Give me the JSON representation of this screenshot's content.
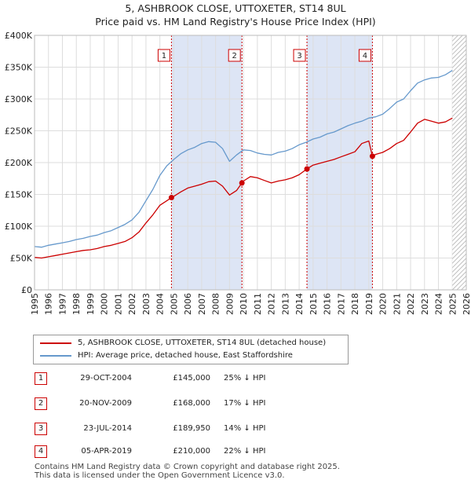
{
  "title": "5, ASHBROOK CLOSE, UTTOXETER, ST14 8UL",
  "subtitle": "Price paid vs. HM Land Registry's House Price Index (HPI)",
  "colors": {
    "property": "#cc0000",
    "hpi": "#6699cc",
    "shade": "#dde5f5",
    "marker_box": "#cc0000"
  },
  "legend": {
    "property": "5, ASHBROOK CLOSE, UTTOXETER, ST14 8UL (detached house)",
    "hpi": "HPI: Average price, detached house, East Staffordshire"
  },
  "transactions": [
    {
      "num": "1",
      "date": "29-OCT-2004",
      "price": "£145,000",
      "hpi": "25% ↓ HPI"
    },
    {
      "num": "2",
      "date": "20-NOV-2009",
      "price": "£168,000",
      "hpi": "17% ↓ HPI"
    },
    {
      "num": "3",
      "date": "23-JUL-2014",
      "price": "£189,950",
      "hpi": "14% ↓ HPI"
    },
    {
      "num": "4",
      "date": "05-APR-2019",
      "price": "£210,000",
      "hpi": "22% ↓ HPI"
    }
  ],
  "footer": {
    "line1": "Contains HM Land Registry data © Crown copyright and database right 2025.",
    "line2": "This data is licensed under the Open Government Licence v3.0."
  },
  "chart_data": {
    "type": "line",
    "title": "5, ASHBROOK CLOSE, UTTOXETER, ST14 8UL",
    "subtitle": "Price paid vs. HM Land Registry's House Price Index (HPI)",
    "xlabel": "",
    "ylabel": "",
    "xlim": [
      1995,
      2026
    ],
    "ylim": [
      0,
      400000
    ],
    "grid": true,
    "legend_position": "below",
    "y_ticks": [
      0,
      50000,
      100000,
      150000,
      200000,
      250000,
      300000,
      350000,
      400000
    ],
    "y_tick_labels": [
      "£0",
      "£50K",
      "£100K",
      "£150K",
      "£200K",
      "£250K",
      "£300K",
      "£350K",
      "£400K"
    ],
    "x_ticks": [
      1995,
      1996,
      1997,
      1998,
      1999,
      2000,
      2001,
      2002,
      2003,
      2004,
      2005,
      2006,
      2007,
      2008,
      2009,
      2010,
      2011,
      2012,
      2013,
      2014,
      2015,
      2016,
      2017,
      2018,
      2019,
      2020,
      2021,
      2022,
      2023,
      2024,
      2025,
      2026
    ],
    "x_tick_labels": [
      "1995",
      "1996",
      "1997",
      "1998",
      "1999",
      "2000",
      "2001",
      "2002",
      "2003",
      "2004",
      "2005",
      "2006",
      "2007",
      "2008",
      "2009",
      "2010",
      "2011",
      "2012",
      "2013",
      "2014",
      "2015",
      "2016",
      "2017",
      "2018",
      "2019",
      "2020",
      "2021",
      "2022",
      "2023",
      "2024",
      "2025",
      "2026"
    ],
    "shaded_ranges": [
      [
        2004.83,
        2009.89
      ],
      [
        2014.56,
        2019.26
      ]
    ],
    "future_from": 2025.0,
    "series": [
      {
        "name": "HPI: Average price, detached house, East Staffordshire",
        "color": "#6699cc",
        "x": [
          1995.0,
          1995.5,
          1996.0,
          1996.5,
          1997.0,
          1997.5,
          1998.0,
          1998.5,
          1999.0,
          1999.5,
          2000.0,
          2000.5,
          2001.0,
          2001.5,
          2002.0,
          2002.5,
          2003.0,
          2003.5,
          2004.0,
          2004.5,
          2005.0,
          2005.5,
          2006.0,
          2006.5,
          2007.0,
          2007.5,
          2008.0,
          2008.5,
          2009.0,
          2009.5,
          2010.0,
          2010.5,
          2011.0,
          2011.5,
          2012.0,
          2012.5,
          2013.0,
          2013.5,
          2014.0,
          2014.5,
          2015.0,
          2015.5,
          2016.0,
          2016.5,
          2017.0,
          2017.5,
          2018.0,
          2018.5,
          2019.0,
          2019.5,
          2020.0,
          2020.5,
          2021.0,
          2021.5,
          2022.0,
          2022.5,
          2023.0,
          2023.5,
          2024.0,
          2024.5,
          2025.0
        ],
        "values": [
          68000,
          67000,
          70000,
          72000,
          74000,
          76000,
          79000,
          81000,
          84000,
          86000,
          90000,
          93000,
          98000,
          103000,
          110000,
          122000,
          140000,
          158000,
          180000,
          195000,
          205000,
          214000,
          220000,
          224000,
          230000,
          233000,
          232000,
          222000,
          202000,
          212000,
          220000,
          219000,
          215000,
          213000,
          212000,
          216000,
          218000,
          222000,
          228000,
          232000,
          237000,
          240000,
          245000,
          248000,
          253000,
          258000,
          262000,
          265000,
          270000,
          272000,
          276000,
          285000,
          295000,
          300000,
          313000,
          325000,
          330000,
          333000,
          334000,
          338000,
          345000
        ]
      },
      {
        "name": "5, ASHBROOK CLOSE, UTTOXETER, ST14 8UL (detached house)",
        "color": "#cc0000",
        "x": [
          1995.0,
          1995.5,
          1996.0,
          1996.5,
          1997.0,
          1997.5,
          1998.0,
          1998.5,
          1999.0,
          1999.5,
          2000.0,
          2000.5,
          2001.0,
          2001.5,
          2002.0,
          2002.5,
          2003.0,
          2003.5,
          2004.0,
          2004.5,
          2004.83,
          2005.0,
          2005.5,
          2006.0,
          2006.5,
          2007.0,
          2007.5,
          2008.0,
          2008.5,
          2009.0,
          2009.5,
          2009.89,
          2010.0,
          2010.5,
          2011.0,
          2011.5,
          2012.0,
          2012.5,
          2013.0,
          2013.5,
          2014.0,
          2014.56,
          2015.0,
          2015.5,
          2016.0,
          2016.5,
          2017.0,
          2017.5,
          2018.0,
          2018.5,
          2019.0,
          2019.26,
          2019.5,
          2020.0,
          2020.5,
          2021.0,
          2021.5,
          2022.0,
          2022.5,
          2023.0,
          2023.5,
          2024.0,
          2024.5,
          2025.0
        ],
        "values": [
          51000,
          50000,
          52000,
          54000,
          56000,
          58000,
          60000,
          62000,
          63000,
          65000,
          68000,
          70000,
          73000,
          76000,
          82000,
          91000,
          105000,
          118000,
          133000,
          140000,
          145000,
          147000,
          154000,
          160000,
          163000,
          166000,
          170000,
          171000,
          163000,
          149000,
          156000,
          168000,
          171000,
          178000,
          176000,
          172000,
          168000,
          171000,
          173000,
          176000,
          181000,
          189950,
          196000,
          199000,
          202000,
          205000,
          209000,
          213000,
          217000,
          230000,
          234000,
          210000,
          213000,
          216000,
          222000,
          230000,
          235000,
          248000,
          262000,
          268000,
          265000,
          262000,
          264000,
          270000
        ]
      }
    ],
    "sales": [
      {
        "label": "1",
        "x": 2004.83,
        "value": 145000
      },
      {
        "label": "2",
        "x": 2009.89,
        "value": 168000
      },
      {
        "label": "3",
        "x": 2014.56,
        "value": 189950
      },
      {
        "label": "4",
        "x": 2019.26,
        "value": 210000
      }
    ]
  }
}
